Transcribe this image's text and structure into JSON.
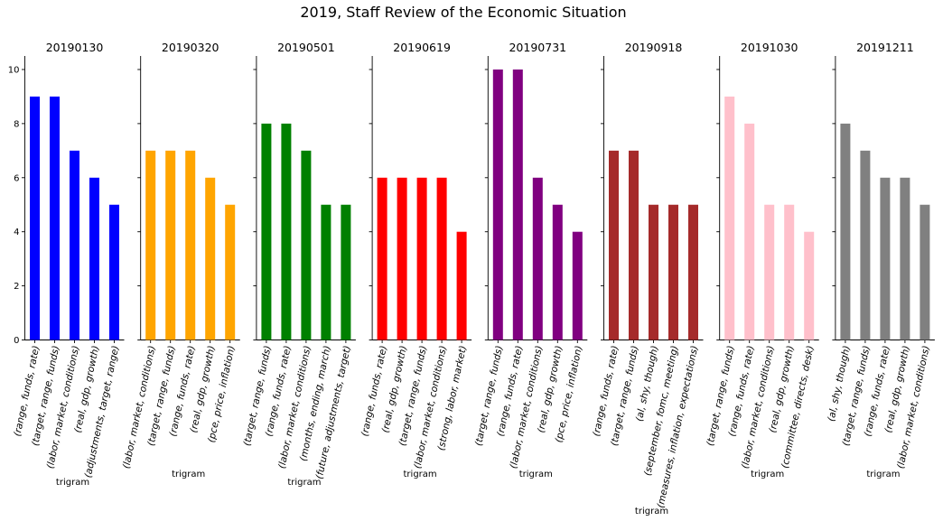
{
  "title": "2019, Staff Review of the Economic Situation",
  "chart_data": {
    "type": "bar",
    "title": "2019, Staff Review of the Economic Situation",
    "ylim": [
      0,
      10.5
    ],
    "yticks": [
      0,
      2,
      4,
      6,
      8,
      10
    ],
    "grid": false,
    "panels": [
      {
        "title": "20190130",
        "color": "#0000ff",
        "xlabel": "trigram",
        "categories": [
          "(range, funds, rate)",
          "(target, range, funds)",
          "(labor, market, conditions)",
          "(real, gdp, growth)",
          "(adjustments, target, range)"
        ],
        "values": [
          9,
          9,
          7,
          6,
          5
        ]
      },
      {
        "title": "20190320",
        "color": "#ffa500",
        "xlabel": "trigram",
        "categories": [
          "(labor, market, conditions)",
          "(target, range, funds)",
          "(range, funds, rate)",
          "(real, gdp, growth)",
          "(pce, price, inflation)"
        ],
        "values": [
          7,
          7,
          7,
          6,
          5
        ]
      },
      {
        "title": "20190501",
        "color": "#008000",
        "xlabel": "trigram",
        "categories": [
          "(target, range, funds)",
          "(range, funds, rate)",
          "(labor, market, conditions)",
          "(months, ending, march)",
          "(future, adjustments, target)"
        ],
        "values": [
          8,
          8,
          7,
          5,
          5
        ]
      },
      {
        "title": "20190619",
        "color": "#ff0000",
        "xlabel": "trigram",
        "categories": [
          "(range, funds, rate)",
          "(real, gdp, growth)",
          "(target, range, funds)",
          "(labor, market, conditions)",
          "(strong, labor, market)"
        ],
        "values": [
          6,
          6,
          6,
          6,
          4
        ]
      },
      {
        "title": "20190731",
        "color": "#800080",
        "xlabel": "trigram",
        "categories": [
          "(target, range, funds)",
          "(range, funds, rate)",
          "(labor, market, conditions)",
          "(real, gdp, growth)",
          "(pce, price, inflation)"
        ],
        "values": [
          10,
          10,
          6,
          5,
          4
        ]
      },
      {
        "title": "20190918",
        "color": "#a52a2a",
        "xlabel": "trigram",
        "categories": [
          "(range, funds, rate)",
          "(target, range, funds)",
          "(al, shy, though)",
          "(september, fomc, meeting)",
          "(measures, inflation, expectations)"
        ],
        "values": [
          7,
          7,
          5,
          5,
          5
        ]
      },
      {
        "title": "20191030",
        "color": "#ffc0cb",
        "xlabel": "trigram",
        "categories": [
          "(target, range, funds)",
          "(range, funds, rate)",
          "(labor, market, conditions)",
          "(real, gdp, growth)",
          "(committee, directs, desk)"
        ],
        "values": [
          9,
          8,
          5,
          5,
          4
        ]
      },
      {
        "title": "20191211",
        "color": "#808080",
        "xlabel": "trigram",
        "categories": [
          "(al, shy, though)",
          "(target, range, funds)",
          "(range, funds, rate)",
          "(real, gdp, growth)",
          "(labor, market, conditions)"
        ],
        "values": [
          8,
          7,
          6,
          6,
          5
        ]
      }
    ]
  }
}
